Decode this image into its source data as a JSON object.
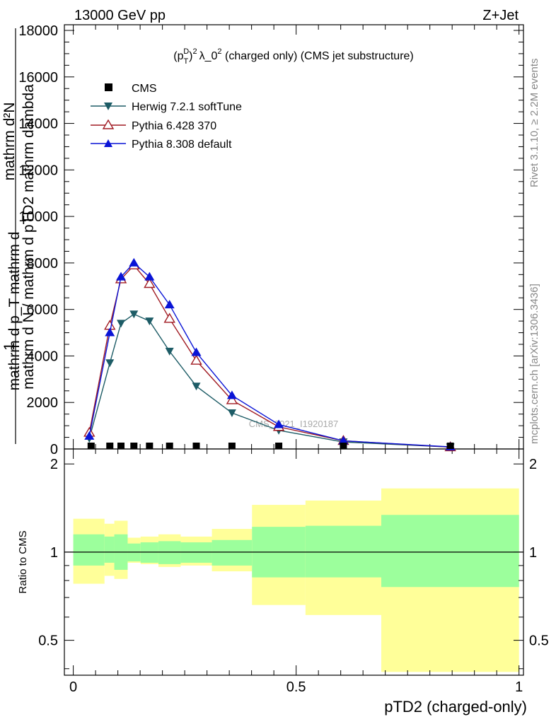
{
  "header": {
    "beam_label": "13000 GeV pp",
    "process_label": "Z+Jet",
    "plot_title": "(p_T^D)^2 λ_0^2 (charged only) (CMS jet substructure)",
    "title_main": "λ_0",
    "title_tail": " (charged only) (CMS jet substructure)",
    "watermark": "CMS_2021_I1920187",
    "side_rivet": "Rivet 3.1.10, ≥ 2.2M events",
    "side_mcplots": "mcplots.cern.ch [arXiv:1306.3436]"
  },
  "axes": {
    "ylabel_main": "mathrm d N / mathrm d pTD2 mathrm dambda",
    "ylabel_num": "mathrm d²N",
    "ylabel_den": "mathrm d p_T mathrm d",
    "ylabel_one": "1",
    "ylabel_ratio": "Ratio to CMS",
    "xlabel": "pTD2 (charged-only)",
    "upper_ytick_labels": [
      "0",
      "2000",
      "4000",
      "6000",
      "8000",
      "10000",
      "12000",
      "14000",
      "16000",
      "18000"
    ],
    "ratio_ytick_labels": [
      "0.5",
      "1",
      "2"
    ],
    "xtick_labels": [
      "0",
      "0.5",
      "1"
    ]
  },
  "legend": {
    "cms": "CMS",
    "herwig": "Herwig 7.2.1 softTune",
    "pythia6": "Pythia 6.428 370",
    "pythia8": "Pythia 8.308 default"
  },
  "colors": {
    "herwig": "#1d5c66",
    "pythia6": "#a01a22",
    "pythia8": "#0a14d6",
    "band_inner": "#9cff9c",
    "band_outer": "#ffff99"
  },
  "chart_data": {
    "type": "line",
    "x_range": [
      -0.02,
      1.01
    ],
    "y_range": [
      0,
      18000
    ],
    "ratio_y_range": [
      0.38,
      2.25
    ],
    "ratio_log": true,
    "upper_ticks": [
      0,
      2000,
      4000,
      6000,
      8000,
      10000,
      12000,
      14000,
      16000,
      18000
    ],
    "ratio_ticks": [
      0.5,
      1,
      2
    ],
    "x_ticks": [
      0,
      0.5,
      1
    ],
    "cms": {
      "x": [
        0.04,
        0.082,
        0.107,
        0.136,
        0.171,
        0.216,
        0.276,
        0.356,
        0.461,
        0.606,
        0.846
      ],
      "y": [
        30,
        30,
        30,
        30,
        30,
        30,
        30,
        30,
        30,
        30,
        30
      ]
    },
    "herwig": {
      "x": [
        0.036,
        0.082,
        0.107,
        0.136,
        0.171,
        0.216,
        0.276,
        0.356,
        0.461,
        0.606,
        0.846
      ],
      "y": [
        450,
        3700,
        5400,
        5800,
        5500,
        4200,
        2700,
        1550,
        800,
        300,
        80
      ]
    },
    "pythia6": {
      "x": [
        0.036,
        0.082,
        0.107,
        0.136,
        0.171,
        0.216,
        0.276,
        0.356,
        0.461,
        0.606,
        0.846
      ],
      "y": [
        700,
        5300,
        7300,
        7900,
        7100,
        5600,
        3800,
        2100,
        950,
        350,
        80
      ]
    },
    "pythia8": {
      "x": [
        0.036,
        0.082,
        0.107,
        0.136,
        0.171,
        0.216,
        0.276,
        0.356,
        0.461,
        0.606,
        0.846
      ],
      "y": [
        550,
        5000,
        7400,
        8000,
        7400,
        6200,
        4150,
        2300,
        1050,
        350,
        90
      ]
    },
    "ratio_bands": [
      {
        "x0": 0.0,
        "x1": 0.07,
        "inner": [
          0.9,
          1.15
        ],
        "outer": [
          0.78,
          1.3
        ]
      },
      {
        "x0": 0.07,
        "x1": 0.092,
        "inner": [
          0.92,
          1.13
        ],
        "outer": [
          0.83,
          1.25
        ]
      },
      {
        "x0": 0.092,
        "x1": 0.122,
        "inner": [
          0.87,
          1.15
        ],
        "outer": [
          0.81,
          1.28
        ]
      },
      {
        "x0": 0.122,
        "x1": 0.151,
        "inner": [
          0.93,
          1.07
        ],
        "outer": [
          0.92,
          1.12
        ]
      },
      {
        "x0": 0.151,
        "x1": 0.191,
        "inner": [
          0.92,
          1.08
        ],
        "outer": [
          0.91,
          1.13
        ]
      },
      {
        "x0": 0.191,
        "x1": 0.241,
        "inner": [
          0.91,
          1.09
        ],
        "outer": [
          0.89,
          1.15
        ]
      },
      {
        "x0": 0.241,
        "x1": 0.311,
        "inner": [
          0.92,
          1.08
        ],
        "outer": [
          0.9,
          1.13
        ]
      },
      {
        "x0": 0.311,
        "x1": 0.401,
        "inner": [
          0.9,
          1.1
        ],
        "outer": [
          0.86,
          1.2
        ]
      },
      {
        "x0": 0.401,
        "x1": 0.521,
        "inner": [
          0.82,
          1.22
        ],
        "outer": [
          0.66,
          1.45
        ]
      },
      {
        "x0": 0.521,
        "x1": 0.691,
        "inner": [
          0.82,
          1.23
        ],
        "outer": [
          0.61,
          1.5
        ]
      },
      {
        "x0": 0.691,
        "x1": 1.0,
        "inner": [
          0.76,
          1.34
        ],
        "outer": [
          0.39,
          1.65
        ]
      }
    ]
  }
}
